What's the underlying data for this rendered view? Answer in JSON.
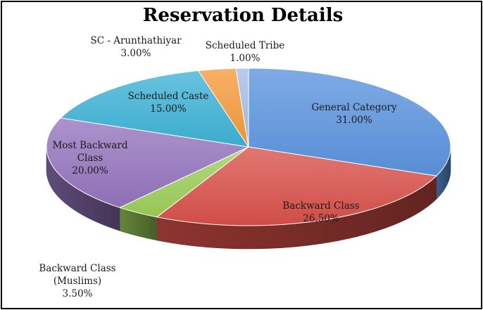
{
  "chart_data": {
    "type": "pie",
    "title": "Reservation Details",
    "slices": [
      {
        "label": "General Category",
        "value": 31.0,
        "display": "31.00%",
        "color": "#5b93de"
      },
      {
        "label": "Backward Class",
        "value": 26.5,
        "display": "26.50%",
        "color": "#d9504a"
      },
      {
        "label": "Backward Class (Muslims)",
        "value": 3.5,
        "display": "3.50%",
        "color": "#9cce5a"
      },
      {
        "label": "Most Backward Class",
        "value": 20.0,
        "display": "20.00%",
        "color": "#9474bd"
      },
      {
        "label": "Scheduled Caste",
        "value": 15.0,
        "display": "15.00%",
        "color": "#3fb2d6"
      },
      {
        "label": "SC - Arunthathiyar",
        "value": 3.0,
        "display": "3.00%",
        "color": "#f59a3b"
      },
      {
        "label": "Scheduled Tribe",
        "value": 1.0,
        "display": "1.00%",
        "color": "#a7bde4"
      }
    ],
    "legend": "none",
    "style": "3d-pie"
  }
}
